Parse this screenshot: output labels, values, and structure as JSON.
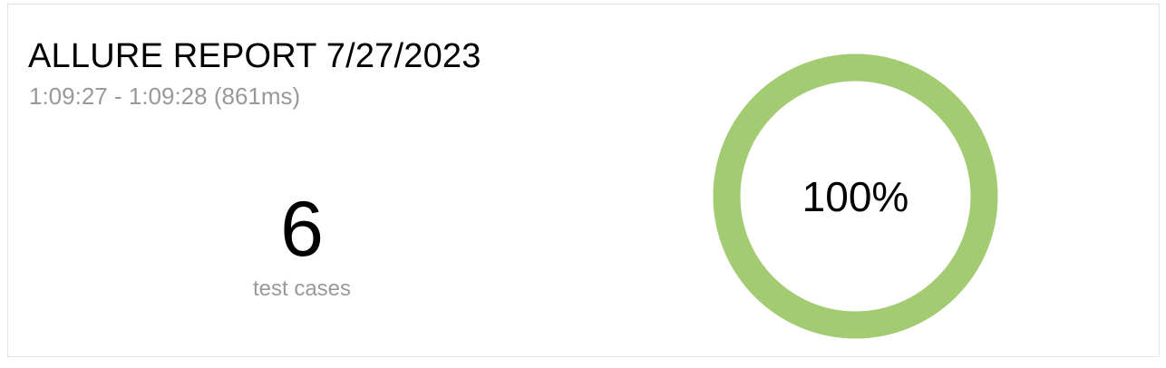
{
  "report": {
    "title": "ALLURE REPORT 7/27/2023",
    "time_range": "1:09:27 - 1:09:28 (861ms)"
  },
  "summary": {
    "test_cases_count": "6",
    "test_cases_label": "test cases"
  },
  "donut": {
    "percent_label": "100%",
    "passed_fraction": 1.0,
    "color_passed": "#a3cc72"
  }
}
